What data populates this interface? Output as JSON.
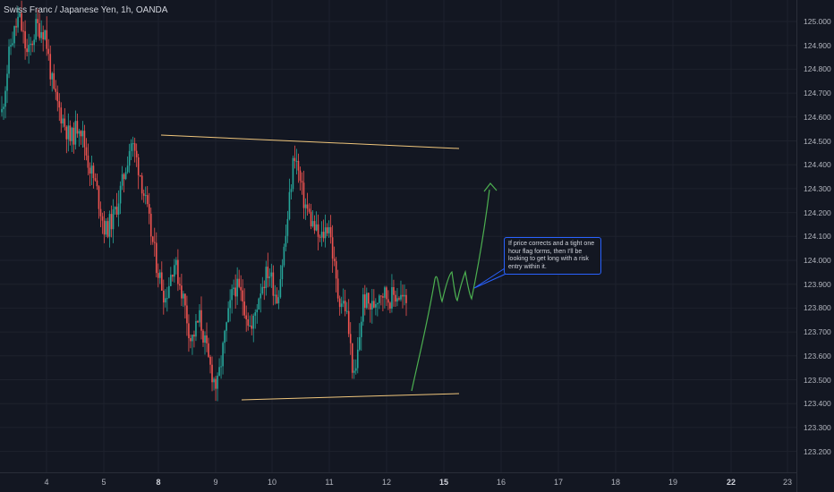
{
  "chart_data": {
    "type": "candlestick",
    "title": "Swiss Franc / Japanese Yen, 1h, OANDA",
    "y_ticks": [
      "125.000",
      "124.900",
      "124.800",
      "124.700",
      "124.600",
      "124.500",
      "124.400",
      "124.300",
      "124.200",
      "124.100",
      "124.000",
      "123.900",
      "123.800",
      "123.700",
      "123.600",
      "123.500",
      "123.400",
      "123.300",
      "123.200"
    ],
    "x_ticks": [
      {
        "label": "4",
        "bold": false
      },
      {
        "label": "5",
        "bold": false
      },
      {
        "label": "8",
        "bold": true
      },
      {
        "label": "9",
        "bold": false
      },
      {
        "label": "10",
        "bold": false
      },
      {
        "label": "11",
        "bold": false
      },
      {
        "label": "12",
        "bold": false
      },
      {
        "label": "15",
        "bold": true
      },
      {
        "label": "16",
        "bold": false
      },
      {
        "label": "17",
        "bold": false
      },
      {
        "label": "18",
        "bold": false
      },
      {
        "label": "19",
        "bold": false
      },
      {
        "label": "22",
        "bold": true
      },
      {
        "label": "23",
        "bold": false
      }
    ],
    "ylim": [
      123.13,
      125.07
    ],
    "price_path": [
      124.62,
      124.9,
      125.02,
      124.85,
      124.98,
      124.96,
      124.7,
      124.6,
      124.5,
      124.58,
      124.42,
      124.3,
      124.12,
      124.18,
      124.32,
      124.5,
      124.38,
      124.18,
      123.98,
      123.84,
      124.0,
      123.86,
      123.66,
      123.76,
      123.58,
      123.46,
      123.7,
      123.9,
      123.84,
      123.7,
      123.88,
      123.96,
      123.84,
      124.1,
      124.46,
      124.26,
      124.16,
      124.08,
      124.16,
      123.86,
      123.8,
      123.48,
      123.84,
      123.8,
      123.88,
      123.84,
      123.86,
      123.82
    ],
    "candle_colors": {
      "up": "#26a69a",
      "down": "#ef5350"
    },
    "trendlines_color": "#f0c67c",
    "projection_color": "#4caf50",
    "annotation": "If price corrects and a tight one hour flag forms, then I'll be looking to get long with a risk entry within it."
  }
}
